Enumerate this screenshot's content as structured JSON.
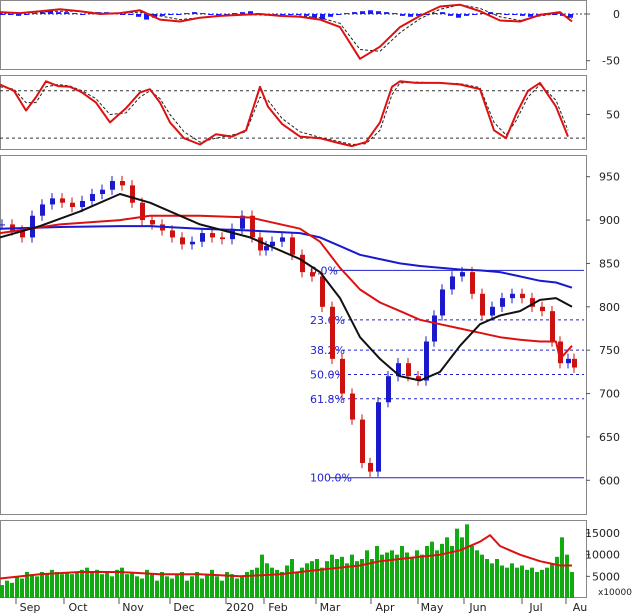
{
  "chart_data": [
    {
      "type": "bar",
      "panel": "macd",
      "y_ticks": [
        0,
        -50
      ],
      "ylim": [
        -60,
        15
      ],
      "histogram": {
        "x": [
          0,
          8,
          16,
          24,
          32,
          40,
          48,
          56,
          64,
          72,
          80,
          88,
          96,
          104,
          112,
          120,
          128,
          136,
          144,
          152,
          160,
          168,
          176,
          184,
          192,
          200,
          208,
          216,
          224,
          232,
          240,
          248,
          256,
          264,
          272,
          280,
          288,
          296,
          304,
          312,
          320,
          328,
          336,
          344,
          352,
          360,
          368,
          376,
          384,
          392,
          400,
          408,
          416,
          424,
          432,
          440,
          448,
          456,
          464,
          472,
          480,
          488,
          496,
          504,
          512,
          520,
          528,
          536,
          544,
          552,
          560,
          568
        ],
        "values": [
          0,
          -1,
          -2,
          -1,
          1,
          2,
          3,
          2,
          2,
          1,
          0,
          1,
          2,
          2,
          1,
          0,
          -1,
          -3,
          -6,
          -4,
          -2,
          -1,
          0,
          1,
          2,
          1,
          -1,
          -2,
          -1,
          1,
          2,
          3,
          1,
          -1,
          -2,
          -1,
          0,
          -1,
          -2,
          -4,
          -6,
          -3,
          -1,
          1,
          2,
          3,
          4,
          3,
          2,
          1,
          -2,
          -3,
          -2,
          -1,
          1,
          2,
          -2,
          -4,
          -2,
          -1,
          1,
          2,
          1,
          0,
          -1,
          -2,
          -3,
          -1,
          1,
          0,
          -2,
          -4
        ]
      },
      "macd_line": {
        "x": [
          0,
          20,
          40,
          60,
          80,
          100,
          120,
          140,
          160,
          180,
          200,
          220,
          240,
          260,
          280,
          300,
          320,
          340,
          360,
          380,
          400,
          420,
          440,
          460,
          480,
          500,
          520,
          540,
          560,
          572
        ],
        "values": [
          2,
          1,
          3,
          5,
          3,
          0,
          1,
          4,
          -6,
          -8,
          -4,
          -2,
          -1,
          0,
          -2,
          -3,
          -6,
          -14,
          -48,
          -35,
          -14,
          -2,
          8,
          10,
          3,
          -7,
          -8,
          -1,
          2,
          -8
        ]
      },
      "signal_line": {
        "x": [
          0,
          20,
          40,
          60,
          80,
          100,
          120,
          140,
          160,
          180,
          200,
          220,
          240,
          260,
          280,
          300,
          320,
          340,
          360,
          380,
          400,
          420,
          440,
          460,
          480,
          500,
          520,
          540,
          560,
          572
        ],
        "values": [
          1,
          1,
          2,
          3,
          3,
          1,
          1,
          2,
          -2,
          -6,
          -4,
          -2,
          -1,
          -1,
          -2,
          -2,
          -4,
          -10,
          -38,
          -40,
          -20,
          -5,
          5,
          10,
          6,
          -3,
          -7,
          -2,
          1,
          -5
        ]
      }
    },
    {
      "type": "line",
      "panel": "stochastic",
      "y_ticks": [
        50
      ],
      "ylim": [
        5,
        100
      ],
      "reference_lines": [
        80,
        20
      ],
      "k_line": {
        "x": [
          0,
          14,
          26,
          36,
          46,
          58,
          70,
          82,
          96,
          110,
          126,
          140,
          150,
          160,
          170,
          184,
          200,
          216,
          232,
          246,
          260,
          268,
          282,
          300,
          320,
          338,
          352,
          366,
          380,
          392,
          400,
          416,
          440,
          460,
          480,
          494,
          506,
          516,
          528,
          540,
          556,
          568
        ],
        "values": [
          88,
          80,
          55,
          72,
          92,
          86,
          85,
          78,
          65,
          40,
          58,
          78,
          82,
          65,
          40,
          20,
          12,
          25,
          22,
          30,
          85,
          60,
          38,
          22,
          20,
          14,
          10,
          15,
          40,
          85,
          92,
          90,
          90,
          88,
          82,
          30,
          20,
          50,
          80,
          90,
          60,
          22
        ]
      },
      "d_line": {
        "x": [
          0,
          14,
          26,
          36,
          46,
          58,
          70,
          82,
          96,
          110,
          126,
          140,
          150,
          160,
          170,
          184,
          200,
          216,
          232,
          246,
          260,
          268,
          282,
          300,
          320,
          338,
          352,
          366,
          380,
          392,
          400,
          416,
          440,
          460,
          480,
          494,
          506,
          516,
          528,
          540,
          556,
          568
        ],
        "values": [
          85,
          82,
          65,
          65,
          85,
          88,
          86,
          80,
          70,
          50,
          52,
          72,
          80,
          70,
          50,
          28,
          15,
          20,
          24,
          28,
          72,
          68,
          45,
          28,
          21,
          16,
          12,
          13,
          30,
          75,
          90,
          91,
          90,
          89,
          84,
          40,
          24,
          42,
          72,
          88,
          68,
          30
        ]
      }
    },
    {
      "type": "candlestick",
      "panel": "price",
      "y_ticks": [
        950,
        900,
        850,
        800,
        750,
        700,
        650,
        600
      ],
      "ylim": [
        560,
        975
      ],
      "x_labels": [
        "Sep",
        "Oct",
        "Nov",
        "Dec",
        "2020",
        "Feb",
        "Mar",
        "Apr",
        "May",
        "Jun",
        "Jul",
        "Au"
      ],
      "close": {
        "x": [
          0,
          10,
          20,
          30,
          40,
          50,
          60,
          70,
          80,
          90,
          100,
          110,
          120,
          130,
          140,
          150,
          160,
          170,
          180,
          190,
          200,
          210,
          220,
          230,
          240,
          250,
          258,
          264,
          270,
          280,
          290,
          300,
          310,
          320,
          330,
          340,
          350,
          360,
          368,
          376,
          386,
          396,
          406,
          416,
          424,
          432,
          440,
          450,
          460,
          470,
          480,
          490,
          500,
          510,
          520,
          530,
          540,
          550,
          558,
          566,
          572
        ],
        "values": [
          895,
          888,
          880,
          905,
          918,
          925,
          920,
          915,
          922,
          930,
          935,
          945,
          940,
          920,
          900,
          895,
          888,
          880,
          872,
          875,
          885,
          880,
          878,
          890,
          905,
          880,
          865,
          870,
          875,
          880,
          860,
          840,
          835,
          800,
          740,
          700,
          670,
          620,
          610,
          690,
          720,
          735,
          720,
          715,
          760,
          790,
          820,
          835,
          840,
          815,
          790,
          800,
          810,
          815,
          810,
          800,
          795,
          760,
          735,
          740,
          730
        ]
      },
      "ma_fast_black": {
        "x": [
          0,
          40,
          80,
          120,
          150,
          200,
          250,
          300,
          320,
          340,
          360,
          380,
          400,
          420,
          440,
          460,
          480,
          500,
          520,
          540,
          556,
          572
        ],
        "values": [
          880,
          893,
          910,
          930,
          920,
          895,
          880,
          855,
          840,
          810,
          765,
          740,
          720,
          715,
          725,
          755,
          780,
          790,
          795,
          808,
          810,
          800
        ]
      },
      "ma_mid_red": {
        "x": [
          0,
          60,
          120,
          150,
          200,
          250,
          300,
          320,
          340,
          360,
          380,
          400,
          420,
          440,
          460,
          480,
          500,
          520,
          540,
          556,
          560,
          572
        ],
        "values": [
          885,
          895,
          900,
          905,
          905,
          903,
          890,
          875,
          845,
          820,
          805,
          795,
          785,
          780,
          775,
          770,
          765,
          762,
          760,
          760,
          740,
          755
        ]
      },
      "ma_slow_blue": {
        "x": [
          0,
          60,
          120,
          150,
          200,
          250,
          300,
          320,
          340,
          360,
          380,
          400,
          420,
          440,
          460,
          480,
          500,
          520,
          540,
          556,
          572
        ],
        "values": [
          890,
          892,
          893,
          893,
          890,
          888,
          885,
          880,
          870,
          860,
          855,
          850,
          847,
          845,
          843,
          842,
          840,
          835,
          830,
          828,
          822
        ]
      },
      "fibonacci": [
        {
          "label": "100.0%",
          "value": 603
        },
        {
          "label": "61.8%",
          "value": 694
        },
        {
          "label": "50.0%",
          "value": 722
        },
        {
          "label": "38.2%",
          "value": 750
        },
        {
          "label": "23.6%",
          "value": 785
        },
        {
          "label": "0.0%",
          "value": 842
        }
      ]
    },
    {
      "type": "bar",
      "panel": "volume",
      "y_ticks": [
        "15000",
        "10000",
        "5000"
      ],
      "y_unit_label": "x10000",
      "ylim": [
        0,
        18000
      ],
      "x": [
        0,
        5,
        10,
        15,
        20,
        25,
        30,
        35,
        40,
        45,
        50,
        55,
        60,
        65,
        70,
        75,
        80,
        85,
        90,
        95,
        100,
        105,
        110,
        115,
        120,
        125,
        130,
        135,
        140,
        145,
        150,
        155,
        160,
        165,
        170,
        175,
        180,
        185,
        190,
        195,
        200,
        205,
        210,
        215,
        220,
        225,
        230,
        235,
        240,
        245,
        250,
        255,
        260,
        265,
        270,
        275,
        280,
        285,
        290,
        295,
        300,
        305,
        310,
        315,
        320,
        325,
        330,
        335,
        340,
        345,
        350,
        355,
        360,
        365,
        370,
        375,
        380,
        385,
        390,
        395,
        400,
        405,
        410,
        415,
        420,
        425,
        430,
        435,
        440,
        445,
        450,
        455,
        460,
        465,
        470,
        475,
        480,
        485,
        490,
        495,
        500,
        505,
        510,
        515,
        520,
        525,
        530,
        535,
        540,
        545,
        550,
        555,
        560,
        565,
        570
      ],
      "values": [
        3000,
        4000,
        3500,
        5000,
        4500,
        6000,
        5500,
        5000,
        6000,
        5500,
        6500,
        6000,
        5500,
        6000,
        5500,
        6000,
        6500,
        7000,
        6000,
        6500,
        5500,
        6000,
        5000,
        6500,
        7000,
        5500,
        6000,
        5000,
        4500,
        6500,
        5500,
        4000,
        6000,
        5000,
        4500,
        5500,
        6000,
        4000,
        5000,
        6000,
        4500,
        5500,
        6500,
        5000,
        4000,
        6000,
        5500,
        4500,
        5000,
        6000,
        6500,
        7000,
        10000,
        8000,
        7000,
        6500,
        6000,
        7500,
        9000,
        6000,
        7000,
        8000,
        8500,
        9000,
        7000,
        8500,
        10000,
        9000,
        9500,
        8000,
        10000,
        8500,
        9000,
        11000,
        9000,
        12000,
        10000,
        10500,
        11000,
        10000,
        12000,
        10500,
        9500,
        11000,
        10000,
        12000,
        13000,
        11000,
        12500,
        14000,
        12000,
        16000,
        14000,
        17000,
        12000,
        11000,
        10000,
        9000,
        8000,
        9000,
        7500,
        7000,
        8000,
        7000,
        7500,
        6500,
        7000,
        6000,
        6500,
        7000,
        8000,
        9500,
        14000,
        10000,
        6000
      ],
      "avg_line": {
        "x": [
          0,
          40,
          80,
          120,
          160,
          200,
          240,
          280,
          320,
          360,
          380,
          400,
          420,
          440,
          460,
          480,
          490,
          500,
          520,
          540,
          560,
          572
        ],
        "values": [
          4500,
          5500,
          6000,
          6000,
          5500,
          5500,
          5000,
          5500,
          6500,
          7500,
          8500,
          9000,
          9500,
          10000,
          11000,
          13000,
          14500,
          12000,
          10000,
          8500,
          7500,
          7500
        ]
      }
    }
  ]
}
